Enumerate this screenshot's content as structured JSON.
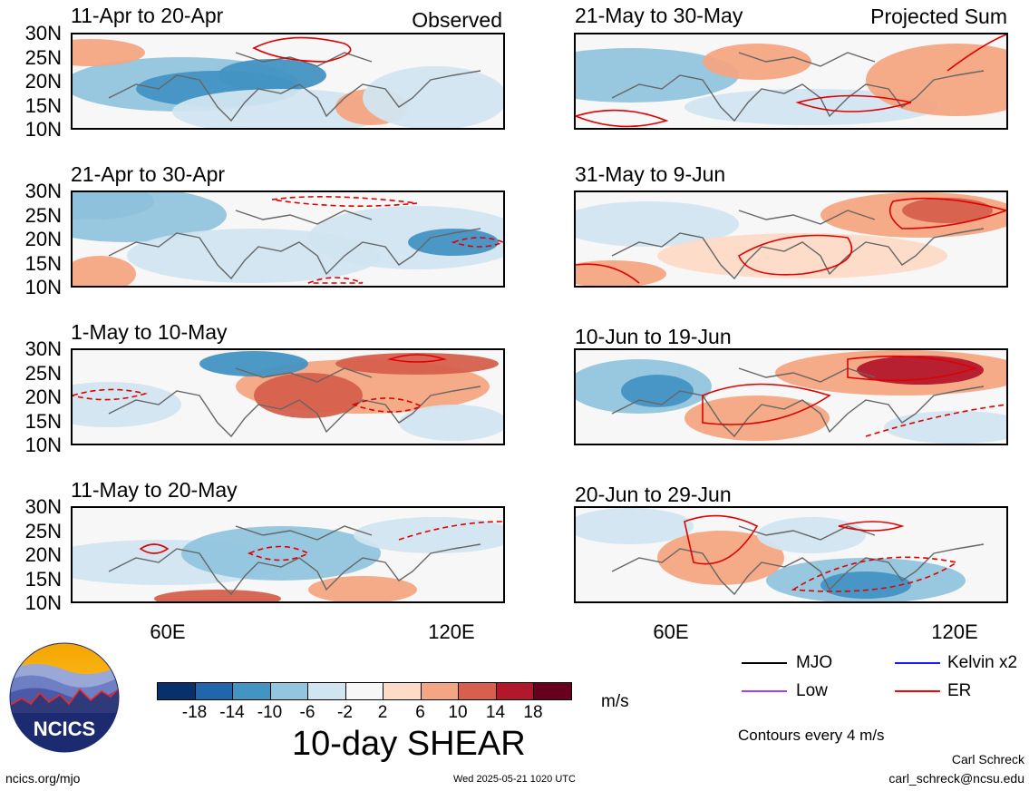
{
  "header": {
    "observed_label": "Observed",
    "projected_label": "Projected Sum"
  },
  "panels_left": [
    {
      "title": "11-Apr to 20-Apr"
    },
    {
      "title": "21-Apr to 30-Apr"
    },
    {
      "title": "1-May to 10-May"
    },
    {
      "title": "11-May to 20-May"
    }
  ],
  "panels_right": [
    {
      "title": "21-May to 30-May"
    },
    {
      "title": "31-May to 9-Jun"
    },
    {
      "title": "10-Jun to 19-Jun"
    },
    {
      "title": "20-Jun to 29-Jun"
    }
  ],
  "axes": {
    "y_ticks": [
      "30N",
      "25N",
      "20N",
      "15N",
      "10N"
    ],
    "x_ticks": [
      "60E",
      "120E"
    ]
  },
  "colorbar": {
    "colors": [
      "#08306b",
      "#2166ac",
      "#4393c3",
      "#92c5de",
      "#d1e5f0",
      "#f7f7f7",
      "#fddbc7",
      "#f4a582",
      "#d6604d",
      "#b2182b",
      "#67001f"
    ],
    "labels": [
      "-18",
      "-14",
      "-10",
      "-6",
      "-2",
      "2",
      "6",
      "10",
      "14",
      "18"
    ],
    "units": "m/s",
    "title": "10-day SHEAR"
  },
  "legend": {
    "items": [
      {
        "label": "MJO",
        "color": "#000000"
      },
      {
        "label": "Kelvin x2",
        "color": "#1a1aff"
      },
      {
        "label": "Low",
        "color": "#a040ff"
      },
      {
        "label": "ER",
        "color": "#ff0000"
      }
    ],
    "contour_note": "Contours every 4 m/s"
  },
  "logo": {
    "text": "NCICS"
  },
  "footer": {
    "site": "ncics.org/mjo",
    "timestamp": "Wed 2025-05-21 1020 UTC",
    "author": "Carl Schreck",
    "email": "carl_schreck@ncsu.edu"
  }
}
